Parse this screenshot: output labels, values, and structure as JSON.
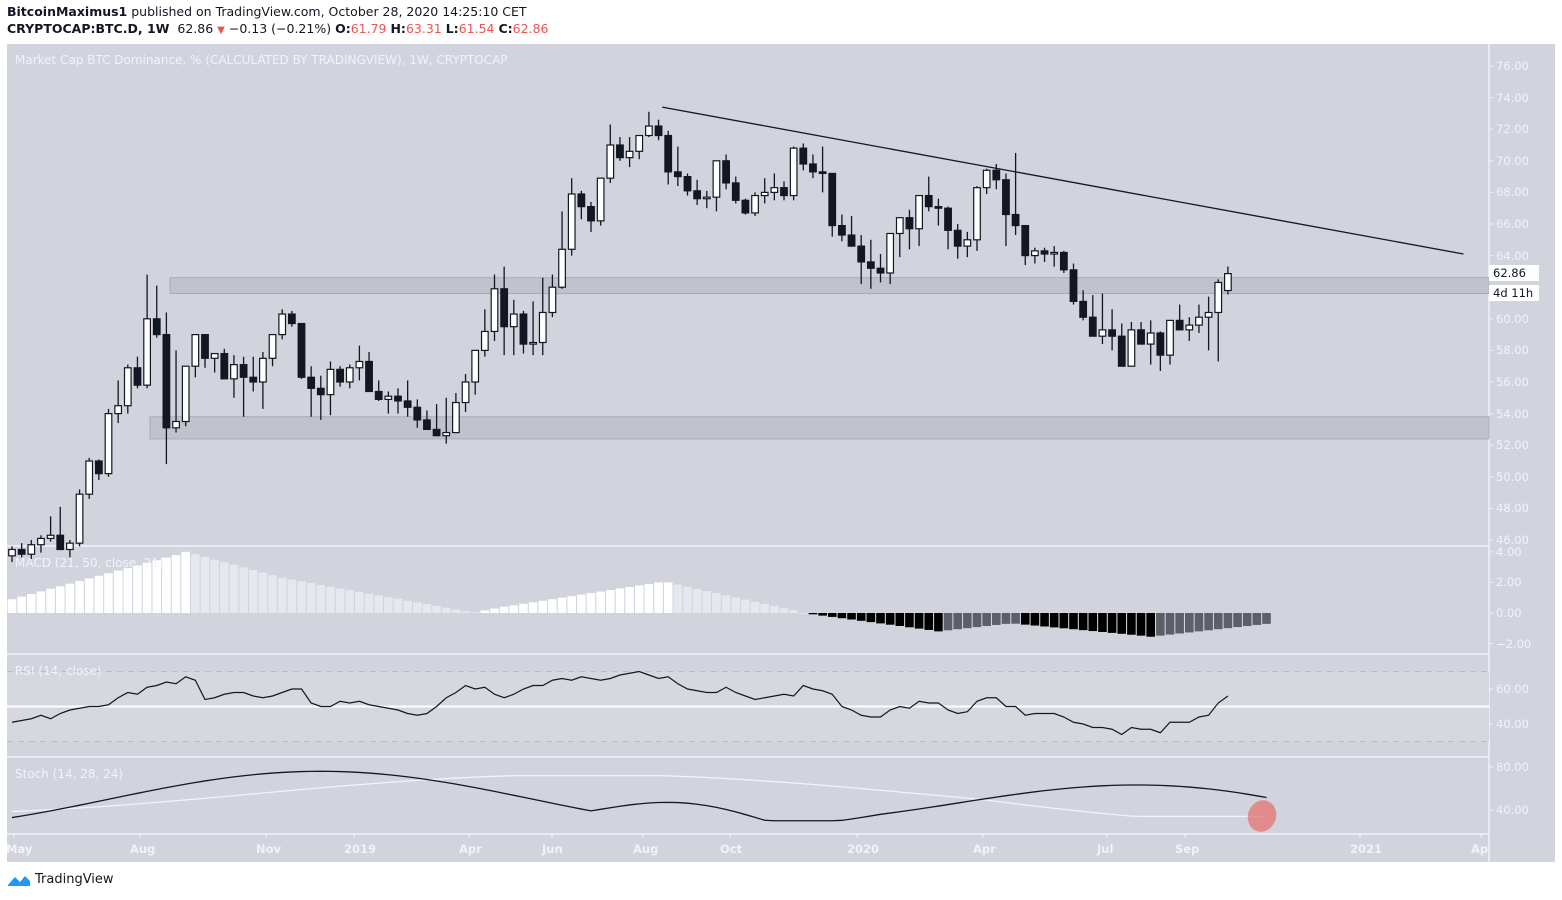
{
  "header": {
    "author": "BitcoinMaximus1",
    "published_text": "published on TradingView.com, October 28, 2020 14:25:10 CET",
    "symbol": "CRYPTOCAP:BTC.D, 1W",
    "last": "62.86",
    "change": "−0.13 (−0.21%)",
    "o_label": "O:",
    "o": "61.79",
    "h_label": "H:",
    "h": "63.31",
    "l_label": "L:",
    "l": "61.54",
    "c_label": "C:",
    "c": "62.86"
  },
  "main_pane": {
    "title": "Market Cap BTC Dominance, % (CALCULATED BY TRADINGVIEW), 1W, CRYPTOCAP",
    "price_label": "62.86",
    "countdown_label": "4d 11h",
    "y_ticks": [
      "76.00",
      "74.00",
      "72.00",
      "70.00",
      "68.00",
      "66.00",
      "64.00",
      "60.00",
      "58.00",
      "56.00",
      "54.00",
      "52.00",
      "50.00",
      "48.00",
      "46.00"
    ]
  },
  "macd_pane": {
    "title": "MACD (21, 50, close, 21)",
    "y_ticks": [
      "4.00",
      "2.00",
      "0.00",
      "−2.00"
    ]
  },
  "rsi_pane": {
    "title": "RSI (14, close)",
    "y_ticks": [
      "60.00",
      "40.00"
    ]
  },
  "stoch_pane": {
    "title": "Stoch (14, 28, 24)",
    "y_ticks": [
      "80.00",
      "40.00"
    ]
  },
  "x_axis": {
    "ticks": [
      "May",
      "Aug",
      "Nov",
      "2019",
      "Apr",
      "Jun",
      "Aug",
      "Oct",
      "2020",
      "Apr",
      "Jul",
      "Sep",
      "2021",
      "Ap"
    ]
  },
  "footer": {
    "brand": "TradingView"
  },
  "colors": {
    "background": "#d1d4dc",
    "up_candle": "#ffffff",
    "down_candle": "#131722",
    "negative": "#ef5350",
    "highlight": "#e57373"
  },
  "chart_data": [
    {
      "type": "candlestick",
      "title": "Market Cap BTC Dominance, % (CALCULATED BY TRADINGVIEW), 1W, CRYPTOCAP",
      "xlabel": "",
      "ylabel": "%",
      "ylim": [
        45.5,
        77
      ],
      "x_ticks": [
        "May",
        "Aug",
        "Nov",
        "2019",
        "Apr",
        "Jun",
        "Aug",
        "Oct",
        "2020",
        "Apr",
        "Jul",
        "Sep",
        "2021",
        "Ap"
      ],
      "candles": [
        [
          45.0,
          45.6,
          44.6,
          45.4
        ],
        [
          45.4,
          45.8,
          44.9,
          45.1
        ],
        [
          45.1,
          46.0,
          44.8,
          45.7
        ],
        [
          45.7,
          46.3,
          45.2,
          46.1
        ],
        [
          46.1,
          47.5,
          45.9,
          46.3
        ],
        [
          46.3,
          48.1,
          46.0,
          45.4
        ],
        [
          45.4,
          46.0,
          44.9,
          45.8
        ],
        [
          45.8,
          49.2,
          45.6,
          48.9
        ],
        [
          48.9,
          51.2,
          48.6,
          51.0
        ],
        [
          51.0,
          51.1,
          49.8,
          50.2
        ],
        [
          50.2,
          54.3,
          50.0,
          54.0
        ],
        [
          54.0,
          56.1,
          53.4,
          54.5
        ],
        [
          54.5,
          57.1,
          54.0,
          56.9
        ],
        [
          56.9,
          57.6,
          55.6,
          55.8
        ],
        [
          55.8,
          62.8,
          55.6,
          60.0
        ],
        [
          60.0,
          62.1,
          58.8,
          59.0
        ],
        [
          59.0,
          60.4,
          50.8,
          53.1
        ],
        [
          53.1,
          58.0,
          52.8,
          53.5
        ],
        [
          53.5,
          57.0,
          53.2,
          57.0
        ],
        [
          57.0,
          58.7,
          56.3,
          59.0
        ],
        [
          59.0,
          58.6,
          56.9,
          57.5
        ],
        [
          57.5,
          57.8,
          56.6,
          57.8
        ],
        [
          57.8,
          58.1,
          56.4,
          56.2
        ],
        [
          56.2,
          57.7,
          55.0,
          57.1
        ],
        [
          57.1,
          57.6,
          53.8,
          56.3
        ],
        [
          56.3,
          57.6,
          55.4,
          56.0
        ],
        [
          56.0,
          57.9,
          54.3,
          57.5
        ],
        [
          57.5,
          58.8,
          57.0,
          59.0
        ],
        [
          59.0,
          60.6,
          58.7,
          60.3
        ],
        [
          60.3,
          60.5,
          59.5,
          59.7
        ],
        [
          59.7,
          59.7,
          56.2,
          56.3
        ],
        [
          56.3,
          57.0,
          53.8,
          55.6
        ],
        [
          55.6,
          56.4,
          53.6,
          55.2
        ],
        [
          55.2,
          57.3,
          53.9,
          56.8
        ],
        [
          56.8,
          57.0,
          55.7,
          56.0
        ],
        [
          56.0,
          57.1,
          55.6,
          56.9
        ],
        [
          56.9,
          58.3,
          56.1,
          57.3
        ],
        [
          57.3,
          57.9,
          55.7,
          55.4
        ],
        [
          55.4,
          56.1,
          54.8,
          54.9
        ],
        [
          54.9,
          55.4,
          54.0,
          55.1
        ],
        [
          55.1,
          55.6,
          54.0,
          54.8
        ],
        [
          54.8,
          56.1,
          53.8,
          54.4
        ],
        [
          54.4,
          54.9,
          53.1,
          53.6
        ],
        [
          53.6,
          54.2,
          53.0,
          53.0
        ],
        [
          53.0,
          54.6,
          52.7,
          52.6
        ],
        [
          52.6,
          55.0,
          52.1,
          52.8
        ],
        [
          52.8,
          55.3,
          52.8,
          54.7
        ],
        [
          54.7,
          56.5,
          54.1,
          56.0
        ],
        [
          56.0,
          56.7,
          55.2,
          58.0
        ],
        [
          58.0,
          60.6,
          57.6,
          59.2
        ],
        [
          59.2,
          62.8,
          58.6,
          61.9
        ],
        [
          61.9,
          63.3,
          57.7,
          59.5
        ],
        [
          59.5,
          61.2,
          57.7,
          60.3
        ],
        [
          60.3,
          60.5,
          57.8,
          58.4
        ],
        [
          58.4,
          61.1,
          57.7,
          58.5
        ],
        [
          58.5,
          62.6,
          57.7,
          60.4
        ],
        [
          60.4,
          62.8,
          60.1,
          62.0
        ],
        [
          62.0,
          66.8,
          61.9,
          64.4
        ],
        [
          64.4,
          68.9,
          64.0,
          67.9
        ],
        [
          67.9,
          68.1,
          66.3,
          67.1
        ],
        [
          67.1,
          67.4,
          65.5,
          66.2
        ],
        [
          66.2,
          68.8,
          65.9,
          68.9
        ],
        [
          68.9,
          72.3,
          68.6,
          71.0
        ],
        [
          71.0,
          71.5,
          70.0,
          70.2
        ],
        [
          70.2,
          71.5,
          69.6,
          70.6
        ],
        [
          70.6,
          71.4,
          70.1,
          71.6
        ],
        [
          71.6,
          73.1,
          71.5,
          72.2
        ],
        [
          72.2,
          72.6,
          71.3,
          71.6
        ],
        [
          71.6,
          71.9,
          68.5,
          69.3
        ],
        [
          69.3,
          70.9,
          68.4,
          69.0
        ],
        [
          69.0,
          69.2,
          67.8,
          68.1
        ],
        [
          68.1,
          68.8,
          67.2,
          67.6
        ],
        [
          67.6,
          68.1,
          67.0,
          67.7
        ],
        [
          67.7,
          69.5,
          66.8,
          70.0
        ],
        [
          70.0,
          70.4,
          68.2,
          68.6
        ],
        [
          68.6,
          69.0,
          67.3,
          67.5
        ],
        [
          67.5,
          67.6,
          66.6,
          66.7
        ],
        [
          66.7,
          68.0,
          66.5,
          67.8
        ],
        [
          67.8,
          68.9,
          67.3,
          68.0
        ],
        [
          68.0,
          69.2,
          67.5,
          68.3
        ],
        [
          68.3,
          68.7,
          67.5,
          67.8
        ],
        [
          67.8,
          70.9,
          67.5,
          70.8
        ],
        [
          70.8,
          71.1,
          69.4,
          69.8
        ],
        [
          69.8,
          70.4,
          68.9,
          69.3
        ],
        [
          69.3,
          70.9,
          68.0,
          69.2
        ],
        [
          69.2,
          68.6,
          65.2,
          65.9
        ],
        [
          65.9,
          66.6,
          64.9,
          65.3
        ],
        [
          65.3,
          66.5,
          64.7,
          64.6
        ],
        [
          64.6,
          65.3,
          62.2,
          63.6
        ],
        [
          63.6,
          65.0,
          61.9,
          63.2
        ],
        [
          63.2,
          64.1,
          62.3,
          62.9
        ],
        [
          62.9,
          65.4,
          62.2,
          65.4
        ],
        [
          65.4,
          66.0,
          63.9,
          66.4
        ],
        [
          66.4,
          66.9,
          64.4,
          65.7
        ],
        [
          65.7,
          67.8,
          64.6,
          67.8
        ],
        [
          67.8,
          69.0,
          66.8,
          67.1
        ],
        [
          67.1,
          67.6,
          65.9,
          67.0
        ],
        [
          67.0,
          67.1,
          64.4,
          65.6
        ],
        [
          65.6,
          66.0,
          63.8,
          64.6
        ],
        [
          64.6,
          65.5,
          63.9,
          65.0
        ],
        [
          65.0,
          68.4,
          64.3,
          68.3
        ],
        [
          68.3,
          69.5,
          67.9,
          69.4
        ],
        [
          69.4,
          69.8,
          68.2,
          68.8
        ],
        [
          68.8,
          69.2,
          64.6,
          66.6
        ],
        [
          66.6,
          70.5,
          65.3,
          65.9
        ],
        [
          65.9,
          64.6,
          63.4,
          64.0
        ],
        [
          64.0,
          64.5,
          63.5,
          64.3
        ],
        [
          64.3,
          64.5,
          63.6,
          64.1
        ],
        [
          64.1,
          64.6,
          63.3,
          64.2
        ],
        [
          64.2,
          64.3,
          62.9,
          63.1
        ],
        [
          63.1,
          63.5,
          60.9,
          61.1
        ],
        [
          61.1,
          61.8,
          59.9,
          60.1
        ],
        [
          60.1,
          61.5,
          58.9,
          58.9
        ],
        [
          58.9,
          61.6,
          58.4,
          59.3
        ],
        [
          59.3,
          60.6,
          58.0,
          58.9
        ],
        [
          58.9,
          59.7,
          58.0,
          57.0
        ],
        [
          57.0,
          59.8,
          58.3,
          59.3
        ],
        [
          59.3,
          59.8,
          58.4,
          58.4
        ],
        [
          58.4,
          59.9,
          57.1,
          59.1
        ],
        [
          59.1,
          59.2,
          56.7,
          57.7
        ],
        [
          57.7,
          59.6,
          57.1,
          59.9
        ],
        [
          59.9,
          60.9,
          59.3,
          59.3
        ],
        [
          59.3,
          60.1,
          58.6,
          59.6
        ],
        [
          59.6,
          60.9,
          59.1,
          60.1
        ],
        [
          60.1,
          61.4,
          58.0,
          60.4
        ],
        [
          60.4,
          62.5,
          57.3,
          62.3
        ],
        [
          61.79,
          63.31,
          61.54,
          62.86
        ]
      ],
      "trendline": {
        "from": {
          "x_index": 68,
          "y": 73.4
        },
        "to": {
          "x_index": 150,
          "y": 64.1
        }
      },
      "zones": [
        {
          "y_low": 61.6,
          "y_high": 62.6
        },
        {
          "y_low": 52.4,
          "y_high": 53.8
        }
      ]
    },
    {
      "type": "bar",
      "title": "MACD (21, 50, close, 21)",
      "ylim": [
        -2.5,
        4.2
      ],
      "note": "histogram: rises to ~4.0 around Sep 2018, ~0 around Mar 2019, ~2.0 around Jul-Aug 2019, negative from Nov 2019 reaching ~-1.5 around Aug-Sep 2020, last ~-0.7"
    },
    {
      "type": "line",
      "title": "RSI (14, close)",
      "ylim": [
        20,
        80
      ],
      "bands": [
        30,
        50,
        70
      ],
      "last": 56
    },
    {
      "type": "line",
      "title": "Stoch (14, 28, 24)",
      "ylim": [
        20,
        100
      ],
      "series": [
        {
          "name": "%K"
        },
        {
          "name": "%D"
        }
      ],
      "annotation": "red ellipse highlighting latest stoch values near 30-36"
    }
  ]
}
